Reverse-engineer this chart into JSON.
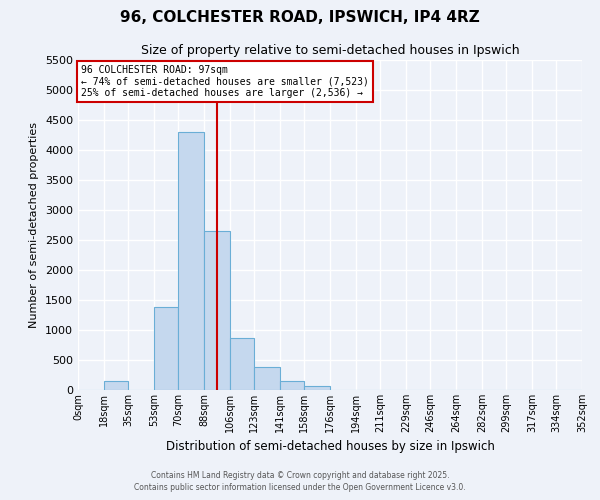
{
  "title": "96, COLCHESTER ROAD, IPSWICH, IP4 4RZ",
  "subtitle": "Size of property relative to semi-detached houses in Ipswich",
  "xlabel": "Distribution of semi-detached houses by size in Ipswich",
  "ylabel": "Number of semi-detached properties",
  "bin_labels": [
    "0sqm",
    "18sqm",
    "35sqm",
    "53sqm",
    "70sqm",
    "88sqm",
    "106sqm",
    "123sqm",
    "141sqm",
    "158sqm",
    "176sqm",
    "194sqm",
    "211sqm",
    "229sqm",
    "246sqm",
    "264sqm",
    "282sqm",
    "299sqm",
    "317sqm",
    "334sqm",
    "352sqm"
  ],
  "bin_edges": [
    0,
    18,
    35,
    53,
    70,
    88,
    106,
    123,
    141,
    158,
    176,
    194,
    211,
    229,
    246,
    264,
    282,
    299,
    317,
    334,
    352
  ],
  "bar_heights": [
    5,
    150,
    0,
    1380,
    4300,
    2650,
    860,
    390,
    150,
    75,
    0,
    0,
    0,
    0,
    0,
    0,
    0,
    0,
    0,
    0
  ],
  "bar_color": "#c5d8ee",
  "bar_edge_color": "#6aaed6",
  "ylim": [
    0,
    5500
  ],
  "yticks": [
    0,
    500,
    1000,
    1500,
    2000,
    2500,
    3000,
    3500,
    4000,
    4500,
    5000,
    5500
  ],
  "property_line_x": 97,
  "vline_color": "#cc0000",
  "annotation_title": "96 COLCHESTER ROAD: 97sqm",
  "annotation_line1": "← 74% of semi-detached houses are smaller (7,523)",
  "annotation_line2": "25% of semi-detached houses are larger (2,536) →",
  "annotation_box_color": "#cc0000",
  "bg_color": "#eef2f9",
  "grid_color": "#ffffff",
  "footer1": "Contains HM Land Registry data © Crown copyright and database right 2025.",
  "footer2": "Contains public sector information licensed under the Open Government Licence v3.0."
}
